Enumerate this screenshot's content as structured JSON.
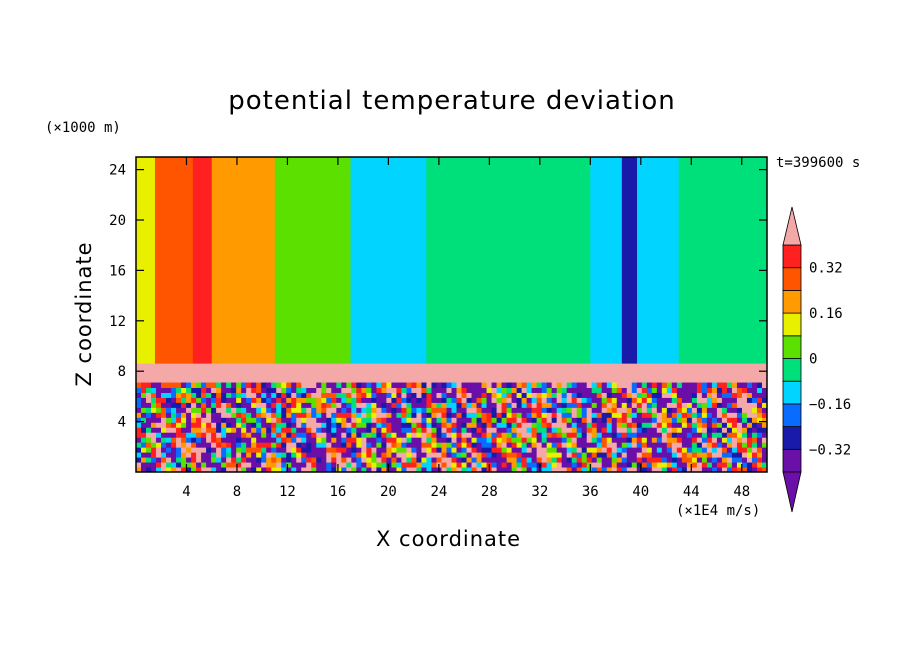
{
  "chart_data": {
    "type": "heatmap",
    "title": "potential temperature deviation",
    "xlabel": "X coordinate",
    "ylabel": "Z coordinate",
    "x_units": "(×1E4 m/s)",
    "y_units": "(×1000 m)",
    "time_label": "t=399600 s",
    "xlim": [
      0,
      50
    ],
    "ylim": [
      0,
      25
    ],
    "x_ticks": [
      4,
      8,
      12,
      16,
      20,
      24,
      28,
      32,
      36,
      40,
      44,
      48
    ],
    "y_ticks": [
      4,
      8,
      12,
      16,
      20,
      24
    ],
    "colorbar": {
      "levels": [
        -0.4,
        -0.32,
        -0.24,
        -0.16,
        -0.08,
        0,
        0.08,
        0.16,
        0.24,
        0.32,
        0.4
      ],
      "tick_labels": [
        {
          "value": -0.32,
          "label": "−0.32"
        },
        {
          "value": -0.16,
          "label": "−0.16"
        },
        {
          "value": 0,
          "label": "0"
        },
        {
          "value": 0.16,
          "label": "0.16"
        },
        {
          "value": 0.32,
          "label": "0.32"
        }
      ],
      "colors": [
        "#6a0fa8",
        "#1a1aaa",
        "#0a6cff",
        "#00d4ff",
        "#00e07a",
        "#5be000",
        "#e8f000",
        "#ff9a00",
        "#ff5500",
        "#ff2020"
      ],
      "extend_low_color": "#6a0fa8",
      "extend_high_color": "#f5a8a8"
    },
    "field_summary": {
      "upper_layer_columns": [
        {
          "x": [
            0,
            1.5
          ],
          "value": 0.1
        },
        {
          "x": [
            1.5,
            4.5
          ],
          "value": 0.26
        },
        {
          "x": [
            4.5,
            6
          ],
          "value": 0.34
        },
        {
          "x": [
            6,
            8
          ],
          "value": 0.18
        },
        {
          "x": [
            8,
            11
          ],
          "value": 0.2
        },
        {
          "x": [
            11,
            17
          ],
          "value": 0.04
        },
        {
          "x": [
            17,
            23
          ],
          "value": -0.12
        },
        {
          "x": [
            23,
            30
          ],
          "value": -0.04
        },
        {
          "x": [
            30,
            36
          ],
          "value": -0.04
        },
        {
          "x": [
            36,
            38.5
          ],
          "value": -0.12
        },
        {
          "x": [
            38.5,
            39.7
          ],
          "value": -0.28
        },
        {
          "x": [
            39.7,
            43
          ],
          "value": -0.12
        },
        {
          "x": [
            43,
            50
          ],
          "value": -0.04
        }
      ],
      "inversion_band": {
        "z": [
          7.1,
          8.6
        ],
        "value": 0.45
      },
      "lower_layer": {
        "z": [
          0,
          7.1
        ],
        "range": [
          -0.45,
          0.45
        ]
      }
    }
  }
}
